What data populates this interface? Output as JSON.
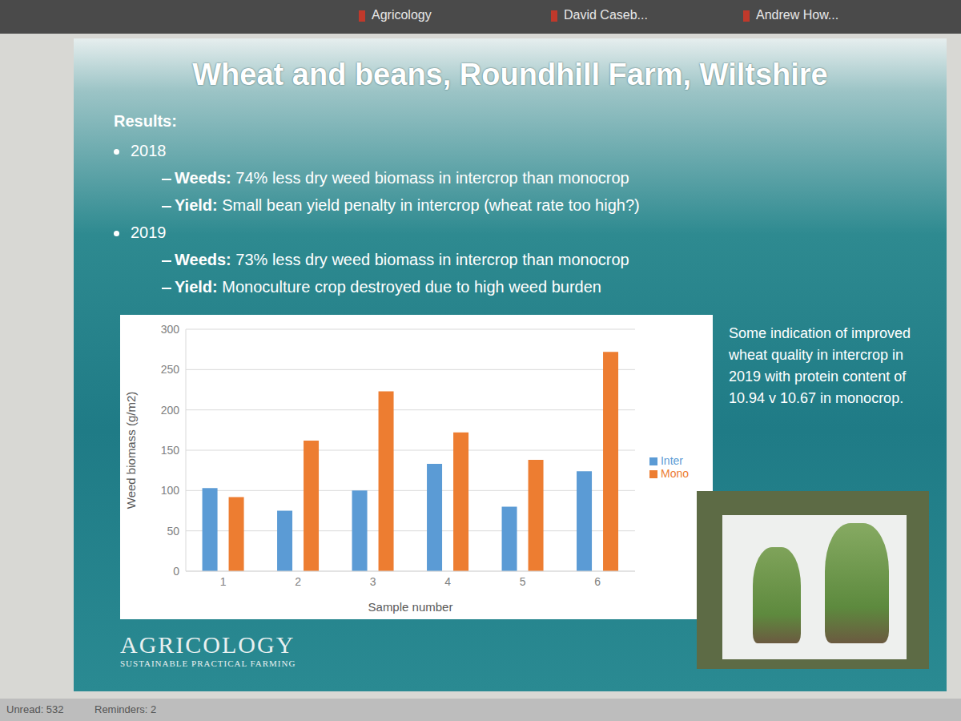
{
  "chart_data": {
    "type": "bar",
    "title": "Wheat and beans, Roundhill Farm, Wiltshire",
    "categories": [
      "1",
      "2",
      "3",
      "4",
      "5",
      "6"
    ],
    "series": [
      {
        "name": "Inter",
        "color": "#5b9bd5",
        "values": [
          103,
          75,
          100,
          133,
          80,
          124
        ]
      },
      {
        "name": "Mono",
        "color": "#ed7d31",
        "values": [
          92,
          162,
          223,
          172,
          138,
          272
        ]
      }
    ],
    "x_label": "Sample number",
    "y_label": "Weed biomass (g/m2)",
    "ylim": [
      0,
      300
    ],
    "yticks": [
      0,
      50,
      100,
      150,
      200,
      250,
      300
    ],
    "grid": true,
    "legend": "right"
  },
  "slide": {
    "results_heading": "Results:",
    "sections": [
      {
        "year": "2018",
        "items": [
          {
            "label": "Weeds:",
            "text": "74% less dry weed biomass in intercrop than monocrop"
          },
          {
            "label": "Yield:",
            "text": "Small bean yield penalty in intercrop (wheat rate too high?)"
          }
        ]
      },
      {
        "year": "2019",
        "items": [
          {
            "label": "Weeds:",
            "text": "73% less dry weed biomass in intercrop than monocrop"
          },
          {
            "label": "Yield:",
            "text": "Monoculture crop destroyed due to high weed burden"
          }
        ]
      }
    ],
    "note": "Some indication of improved wheat quality in intercrop in 2019 with protein content of 10.94 v 10.67 in monocrop.",
    "logo": "AGRICOLOGY",
    "logo_tagline": "SUSTAINABLE PRACTICAL FARMING"
  },
  "screen": {
    "tabs": [
      "Agricology",
      "David Caseb...",
      "Andrew How..."
    ],
    "status": [
      "Unread: 532",
      "Reminders: 2"
    ]
  }
}
